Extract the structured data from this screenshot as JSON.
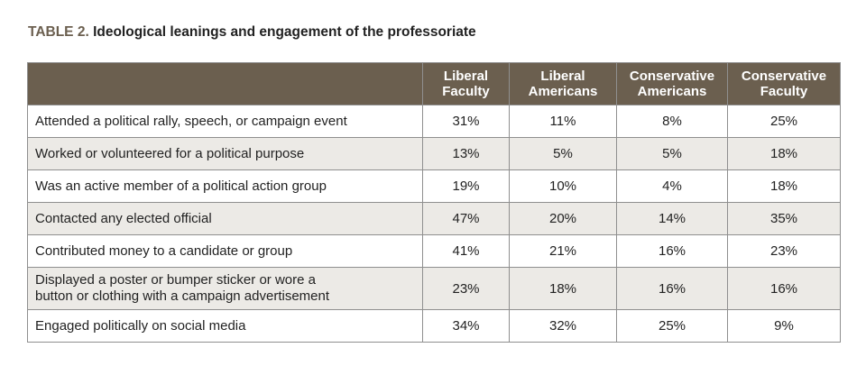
{
  "title": {
    "label": "TABLE 2.",
    "text": "Ideological leanings and engagement of the professoriate"
  },
  "table": {
    "columns": [
      [
        "Liberal",
        "Faculty"
      ],
      [
        "Liberal",
        "Americans"
      ],
      [
        "Conservative",
        "Americans"
      ],
      [
        "Conservative",
        "Faculty"
      ]
    ],
    "rows": [
      {
        "label": "Attended a political rally, speech, or campaign event",
        "values": [
          "31%",
          "11%",
          "8%",
          "25%"
        ]
      },
      {
        "label": "Worked or volunteered for a political purpose",
        "values": [
          "13%",
          "5%",
          "5%",
          "18%"
        ]
      },
      {
        "label": "Was an active member of a political action group",
        "values": [
          "19%",
          "10%",
          "4%",
          "18%"
        ]
      },
      {
        "label": "Contacted any elected official",
        "values": [
          "47%",
          "20%",
          "14%",
          "35%"
        ]
      },
      {
        "label": "Contributed money to a candidate or group",
        "values": [
          "41%",
          "21%",
          "16%",
          "23%"
        ]
      },
      {
        "label_lines": [
          "Displayed a poster or bumper sticker or wore a",
          "button or clothing with a campaign advertisement"
        ],
        "values": [
          "23%",
          "18%",
          "16%",
          "16%"
        ]
      },
      {
        "label": "Engaged politically on social media",
        "values": [
          "34%",
          "32%",
          "25%",
          "9%"
        ]
      }
    ]
  },
  "colors": {
    "header_bg": "#6b5f4f",
    "stripe_bg": "#eceae6",
    "title_label": "#6b5f4f"
  }
}
